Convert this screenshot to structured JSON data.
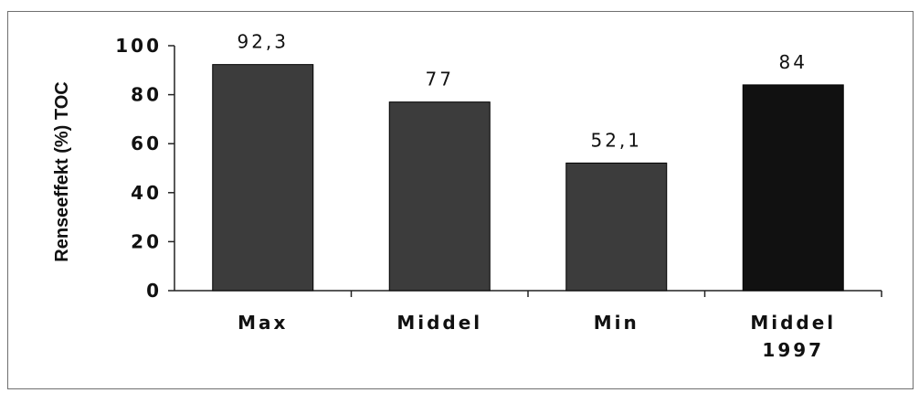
{
  "chart_data": {
    "type": "bar",
    "ylabel": "Renseeffekt (%) TOC",
    "xlabel": "",
    "ylim": [
      0,
      100
    ],
    "yticks": [
      "0",
      "20",
      "40",
      "60",
      "80",
      "100"
    ],
    "categories": [
      [
        "Max"
      ],
      [
        "Middel"
      ],
      [
        "Min"
      ],
      [
        "Middel",
        "1997"
      ]
    ],
    "values": [
      92.3,
      77,
      52.1,
      84
    ],
    "value_labels": [
      "92,3",
      "77",
      "52,1",
      "84"
    ],
    "bar_colors": [
      "#3c3c3c",
      "#3c3c3c",
      "#3c3c3c",
      "#111111"
    ],
    "grid": false,
    "legend": "none"
  }
}
